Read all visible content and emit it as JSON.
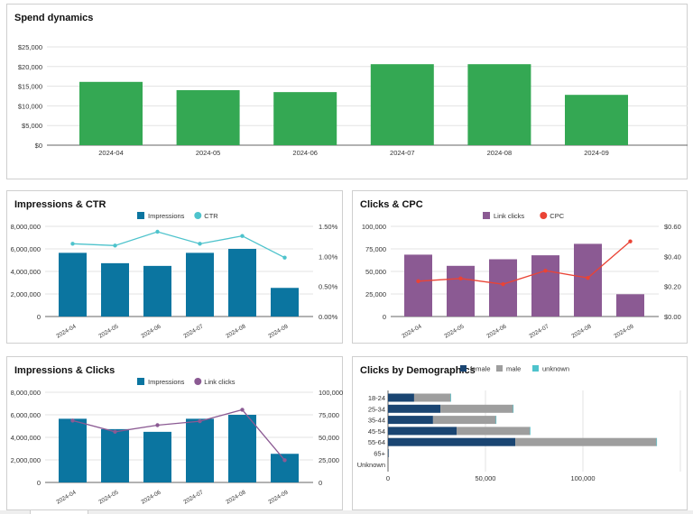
{
  "colors": {
    "spend": "#34a853",
    "impressions": "#0b75a0",
    "ctr": "#4ec3cc",
    "clicks": "#8b5a93",
    "cpc": "#ea4335",
    "female": "#1a4572",
    "male": "#9e9e9e",
    "unknown": "#4ec3cc"
  },
  "months": [
    "2024-04",
    "2024-05",
    "2024-06",
    "2024-07",
    "2024-08",
    "2024-09"
  ],
  "chart_data": [
    {
      "title": "Spend dynamics",
      "type": "bar",
      "categories": [
        "2024-04",
        "2024-05",
        "2024-06",
        "2024-07",
        "2024-08",
        "2024-09"
      ],
      "values": [
        16100,
        14000,
        13500,
        20600,
        20600,
        12800
      ],
      "ylim": [
        0,
        25000
      ],
      "yticks": [
        "$0",
        "$5,000",
        "$10,000",
        "$15,000",
        "$20,000",
        "$25,000"
      ],
      "grid": true
    },
    {
      "title": "Impressions & CTR",
      "type": "bar+line",
      "categories": [
        "2024-04",
        "2024-05",
        "2024-06",
        "2024-07",
        "2024-08",
        "2024-09"
      ],
      "series": [
        {
          "name": "Impressions",
          "type": "bar",
          "axis": "left",
          "values": [
            5650000,
            4730000,
            4490000,
            5650000,
            6000000,
            2540000
          ]
        },
        {
          "name": "CTR",
          "type": "line",
          "axis": "right",
          "values": [
            1.21,
            1.18,
            1.41,
            1.21,
            1.34,
            0.98
          ]
        }
      ],
      "ylim_left": [
        0,
        8000000
      ],
      "yticks_left": [
        "0",
        "2,000,000",
        "4,000,000",
        "6,000,000",
        "8,000,000"
      ],
      "ylim_right": [
        0,
        1.5
      ],
      "yticks_right": [
        "0.00%",
        "0.50%",
        "1.00%",
        "1.50%"
      ],
      "legend": "top"
    },
    {
      "title": "Clicks & CPC",
      "type": "bar+line",
      "categories": [
        "2024-04",
        "2024-05",
        "2024-06",
        "2024-07",
        "2024-08",
        "2024-09"
      ],
      "series": [
        {
          "name": "Link clicks",
          "type": "bar",
          "axis": "left",
          "values": [
            68600,
            56200,
            63500,
            67900,
            80600,
            24700
          ]
        },
        {
          "name": "CPC",
          "type": "line",
          "axis": "right",
          "values": [
            0.235,
            0.253,
            0.215,
            0.305,
            0.257,
            0.5
          ]
        }
      ],
      "ylim_left": [
        0,
        100000
      ],
      "yticks_left": [
        "0",
        "25,000",
        "50,000",
        "75,000",
        "100,000"
      ],
      "ylim_right": [
        0,
        0.6
      ],
      "yticks_right": [
        "$0.00",
        "$0.20",
        "$0.40",
        "$0.60"
      ],
      "legend": "top"
    },
    {
      "title": "Impressions & Clicks",
      "type": "bar+line",
      "categories": [
        "2024-04",
        "2024-05",
        "2024-06",
        "2024-07",
        "2024-08",
        "2024-09"
      ],
      "series": [
        {
          "name": "Impressions",
          "type": "bar",
          "axis": "left",
          "values": [
            5650000,
            4730000,
            4490000,
            5650000,
            6000000,
            2540000
          ]
        },
        {
          "name": "Link clicks",
          "type": "line",
          "axis": "right",
          "values": [
            68600,
            56200,
            63500,
            67900,
            80600,
            24700
          ]
        }
      ],
      "ylim_left": [
        0,
        8000000
      ],
      "yticks_left": [
        "0",
        "2,000,000",
        "4,000,000",
        "6,000,000",
        "8,000,000"
      ],
      "ylim_right": [
        0,
        100000
      ],
      "yticks_right": [
        "0",
        "25,000",
        "50,000",
        "75,000",
        "100,000"
      ],
      "legend": "top"
    },
    {
      "title": "Clicks by Demographics",
      "type": "stacked-bar-horizontal",
      "categories": [
        "18-24",
        "25-34",
        "35-44",
        "45-54",
        "55-64",
        "65+",
        "Unknown"
      ],
      "series": [
        {
          "name": "female",
          "values": [
            13400,
            26900,
            23100,
            35200,
            65300,
            300,
            0
          ]
        },
        {
          "name": "male",
          "values": [
            18700,
            37200,
            32200,
            37600,
            72400,
            200,
            0
          ]
        },
        {
          "name": "unknown",
          "values": [
            300,
            300,
            300,
            300,
            300,
            0,
            0
          ]
        }
      ],
      "xlim": [
        0,
        150000
      ],
      "xticks": [
        "0",
        "50,000",
        "100,000"
      ],
      "legend": "top"
    }
  ]
}
